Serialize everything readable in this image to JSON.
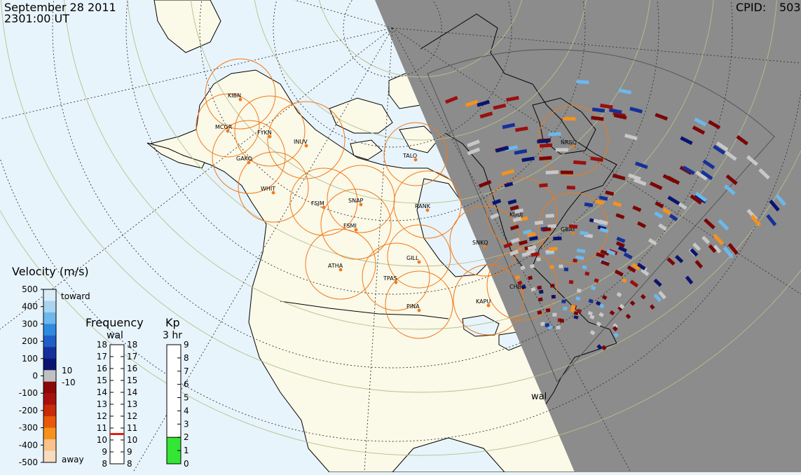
{
  "header": {
    "date": "September 28 2011",
    "time": "2301:00 UT",
    "cpid_label": "CPID:",
    "cpid_value": "503"
  },
  "radar_label": "wal",
  "stations": [
    {
      "id": "KIBN"
    },
    {
      "id": "MCGR"
    },
    {
      "id": "FYKN"
    },
    {
      "id": "INUV"
    },
    {
      "id": "GAKO"
    },
    {
      "id": "WHIT"
    },
    {
      "id": "FSIM"
    },
    {
      "id": "SNAP"
    },
    {
      "id": "FSMI"
    },
    {
      "id": "RANK"
    },
    {
      "id": "TALO"
    },
    {
      "id": "NRSQ"
    },
    {
      "id": "KUUJ"
    },
    {
      "id": "GBAY"
    },
    {
      "id": "SNKQ"
    },
    {
      "id": "GILL"
    },
    {
      "id": "ATHA"
    },
    {
      "id": "TPAS"
    },
    {
      "id": "PINA"
    },
    {
      "id": "CHBG"
    },
    {
      "id": "KAPU"
    }
  ],
  "velocity_legend": {
    "title": "Velocity (m/s)",
    "ticks": [
      "500",
      "400",
      "300",
      "200",
      "100",
      "0",
      "-100",
      "-200",
      "-300",
      "-400",
      "-500"
    ],
    "toward_label": "toward",
    "away_label": "away",
    "threshold_pos": "10",
    "threshold_neg": "-10",
    "colors": [
      "#d8ecf8",
      "#a8d4f0",
      "#6cb8ec",
      "#2f8be0",
      "#1f5ec8",
      "#15309a",
      "#0a1470",
      "#c0c0c0",
      "#8a0808",
      "#a81010",
      "#c82a0a",
      "#e8580a",
      "#f5921e",
      "#f8c28a",
      "#f8dcc0"
    ]
  },
  "frequency_legend": {
    "title": "Frequency",
    "subtitle": "wal",
    "ticks": [
      "18",
      "17",
      "16",
      "15",
      "14",
      "13",
      "12",
      "11",
      "10",
      "9",
      "8"
    ],
    "current_mhz": 10.5,
    "indicator_color": "#e02010"
  },
  "kp_legend": {
    "title": "Kp",
    "subtitle": "3 hr",
    "ticks": [
      "9",
      "8",
      "7",
      "6",
      "5",
      "4",
      "3",
      "2",
      "1",
      "0"
    ],
    "value": 2,
    "fill_color": "#33e633"
  },
  "colors": {
    "ocean": "#e8f4fb",
    "land": "#fbf9e8",
    "night": "#8c8c8c",
    "fov_circle": "#f07a1a",
    "station": "#f07a1a"
  }
}
